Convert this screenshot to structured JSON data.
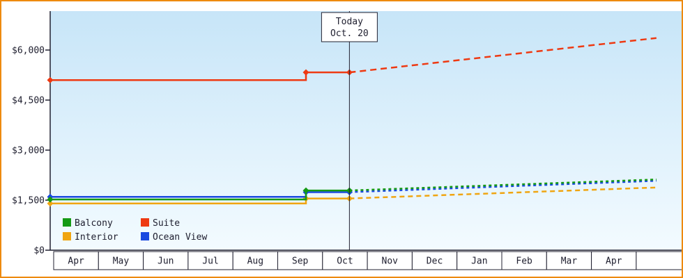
{
  "frame": {
    "border_color": "#ee8a0e",
    "background": "#ffffff"
  },
  "chart_data": {
    "type": "line",
    "plot_background": {
      "top": "#c7e5f8",
      "bottom": "#f3fbff"
    },
    "axis_color": "#202030",
    "text_color": "#202030",
    "x_axis": {
      "tick_labels": [
        "Apr",
        "May",
        "Jun",
        "Jul",
        "Aug",
        "Sep",
        "Oct",
        "Nov",
        "Dec",
        "Jan",
        "Feb",
        "Mar",
        "Apr"
      ]
    },
    "y_axis": {
      "tick_values": [
        0,
        1500,
        3000,
        4500,
        6000
      ],
      "tick_labels": [
        "$0",
        "$1,500",
        "$3,000",
        "$4,500",
        "$6,000"
      ],
      "range": [
        0,
        7160
      ]
    },
    "today": {
      "label_top": "Today",
      "label_bottom": "Oct. 20",
      "month_position": 6.6
    },
    "series_geometry": {
      "step_month": 5.63,
      "forecast_end_month": 13.45
    },
    "series": [
      {
        "name": "Interior",
        "color": "#f0a511",
        "dash": "7 5",
        "initial": 1400,
        "after_step": 1550,
        "today": 1550,
        "forecast_end": 1880
      },
      {
        "name": "Ocean View",
        "color": "#1a49e0",
        "dash": "4 4",
        "initial": 1600,
        "after_step": 1740,
        "today": 1740,
        "forecast_end": 2080
      },
      {
        "name": "Balcony",
        "color": "#149a14",
        "dash": "4 4",
        "initial": 1520,
        "after_step": 1790,
        "today": 1790,
        "forecast_end": 2120
      },
      {
        "name": "Suite",
        "color": "#ee3912",
        "dash": "9 6",
        "initial": 5100,
        "after_step": 5330,
        "today": 5330,
        "forecast_end": 6360
      }
    ],
    "legend": {
      "position": "bottom-left",
      "items": [
        "Balcony",
        "Suite",
        "Interior",
        "Ocean View"
      ]
    }
  }
}
